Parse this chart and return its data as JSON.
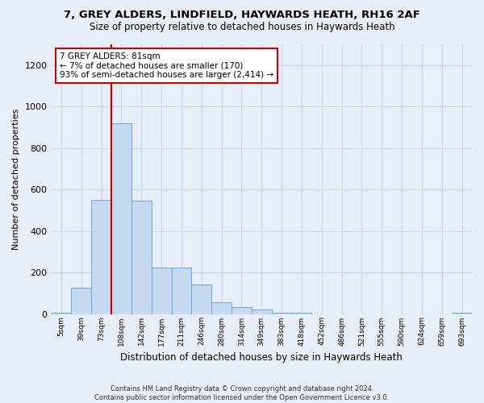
{
  "title1": "7, GREY ALDERS, LINDFIELD, HAYWARDS HEATH, RH16 2AF",
  "title2": "Size of property relative to detached houses in Haywards Heath",
  "xlabel": "Distribution of detached houses by size in Haywards Heath",
  "ylabel": "Number of detached properties",
  "categories": [
    "5sqm",
    "39sqm",
    "73sqm",
    "108sqm",
    "142sqm",
    "177sqm",
    "211sqm",
    "246sqm",
    "280sqm",
    "314sqm",
    "349sqm",
    "383sqm",
    "418sqm",
    "452sqm",
    "486sqm",
    "521sqm",
    "555sqm",
    "590sqm",
    "624sqm",
    "659sqm",
    "693sqm"
  ],
  "values": [
    5,
    125,
    550,
    920,
    545,
    225,
    225,
    140,
    55,
    35,
    20,
    5,
    5,
    0,
    0,
    0,
    0,
    0,
    0,
    0,
    5
  ],
  "bar_color": "#c5d8f0",
  "bar_edge_color": "#6aaad4",
  "grid_color": "#c8d4e8",
  "background_color": "#e8eef8",
  "vline_color": "#cc0000",
  "annotation_text": "7 GREY ALDERS: 81sqm\n← 7% of detached houses are smaller (170)\n93% of semi-detached houses are larger (2,414) →",
  "annotation_box_color": "#cc0000",
  "ylim": [
    0,
    1300
  ],
  "yticks": [
    0,
    200,
    400,
    600,
    800,
    1000,
    1200
  ],
  "footnote1": "Contains HM Land Registry data © Crown copyright and database right 2024.",
  "footnote2": "Contains public sector information licensed under the Open Government Licence v3.0."
}
